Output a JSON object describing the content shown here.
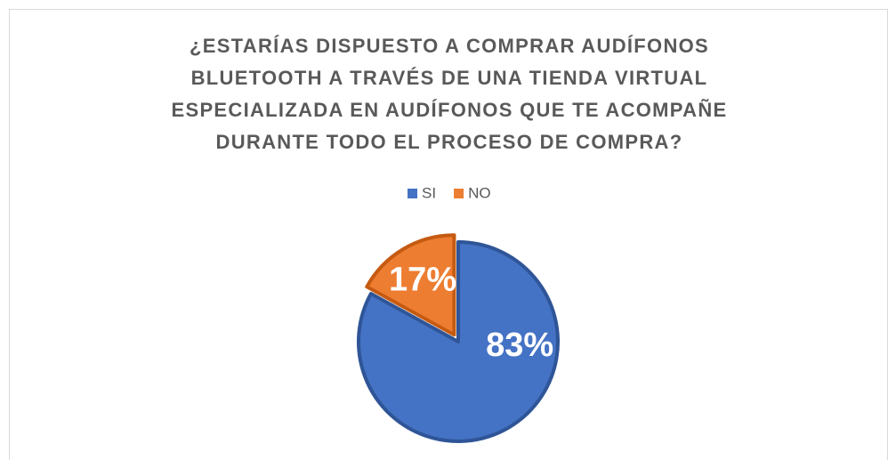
{
  "chart_data": {
    "type": "pie",
    "title": "¿ESTARÍAS DISPUESTO A COMPRAR AUDÍFONOS BLUETOOTH A TRAVÉS DE UNA TIENDA VIRTUAL ESPECIALIZADA EN AUDÍFONOS QUE TE ACOMPAÑE DURANTE TODO EL PROCESO DE COMPRA?",
    "categories": [
      "SI",
      "NO"
    ],
    "values": [
      83,
      17
    ],
    "value_labels": [
      "83%",
      "17%"
    ],
    "colors": [
      "#4472c4",
      "#ed7d31"
    ],
    "legend": "top"
  }
}
